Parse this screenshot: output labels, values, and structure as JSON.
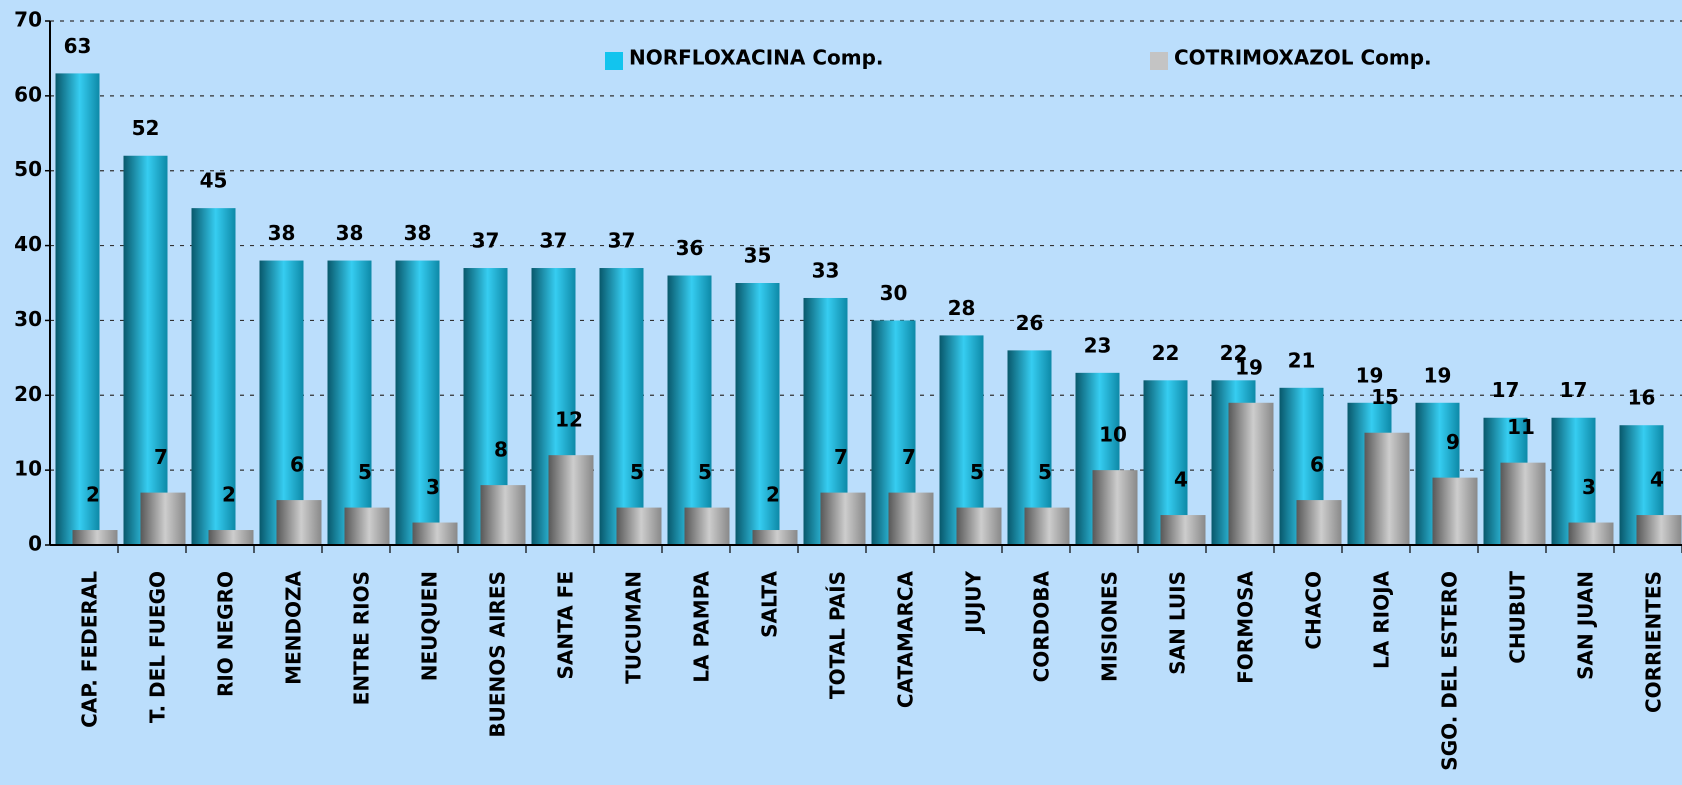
{
  "chart_data": {
    "type": "bar",
    "categories": [
      "CAP. FEDERAL",
      "T. DEL FUEGO",
      "RIO NEGRO",
      "MENDOZA",
      "ENTRE RIOS",
      "NEUQUEN",
      "BUENOS AIRES",
      "SANTA FE",
      "TUCUMAN",
      "LA PAMPA",
      "SALTA",
      "TOTAL PAÍS",
      "CATAMARCA",
      "JUJUY",
      "CORDOBA",
      "MISIONES",
      "SAN LUIS",
      "FORMOSA",
      "CHACO",
      "LA RIOJA",
      "SGO. DEL ESTERO",
      "CHUBUT",
      "SAN JUAN",
      "CORRIENTES"
    ],
    "series": [
      {
        "name": "NORFLOXACINA Comp.",
        "color": "#12c4ee",
        "values": [
          63,
          52,
          45,
          38,
          38,
          38,
          37,
          37,
          37,
          36,
          35,
          33,
          30,
          28,
          26,
          23,
          22,
          22,
          21,
          19,
          19,
          17,
          17,
          16
        ]
      },
      {
        "name": "COTRIMOXAZOL Comp.",
        "color": "#c4c4c4",
        "values": [
          2,
          7,
          2,
          6,
          5,
          3,
          8,
          12,
          5,
          5,
          2,
          7,
          7,
          5,
          5,
          10,
          4,
          19,
          6,
          15,
          9,
          11,
          3,
          4
        ]
      }
    ],
    "ylim": [
      0,
      70
    ],
    "yticks": [
      0,
      10,
      20,
      30,
      40,
      50,
      60,
      70
    ],
    "grid": true
  }
}
